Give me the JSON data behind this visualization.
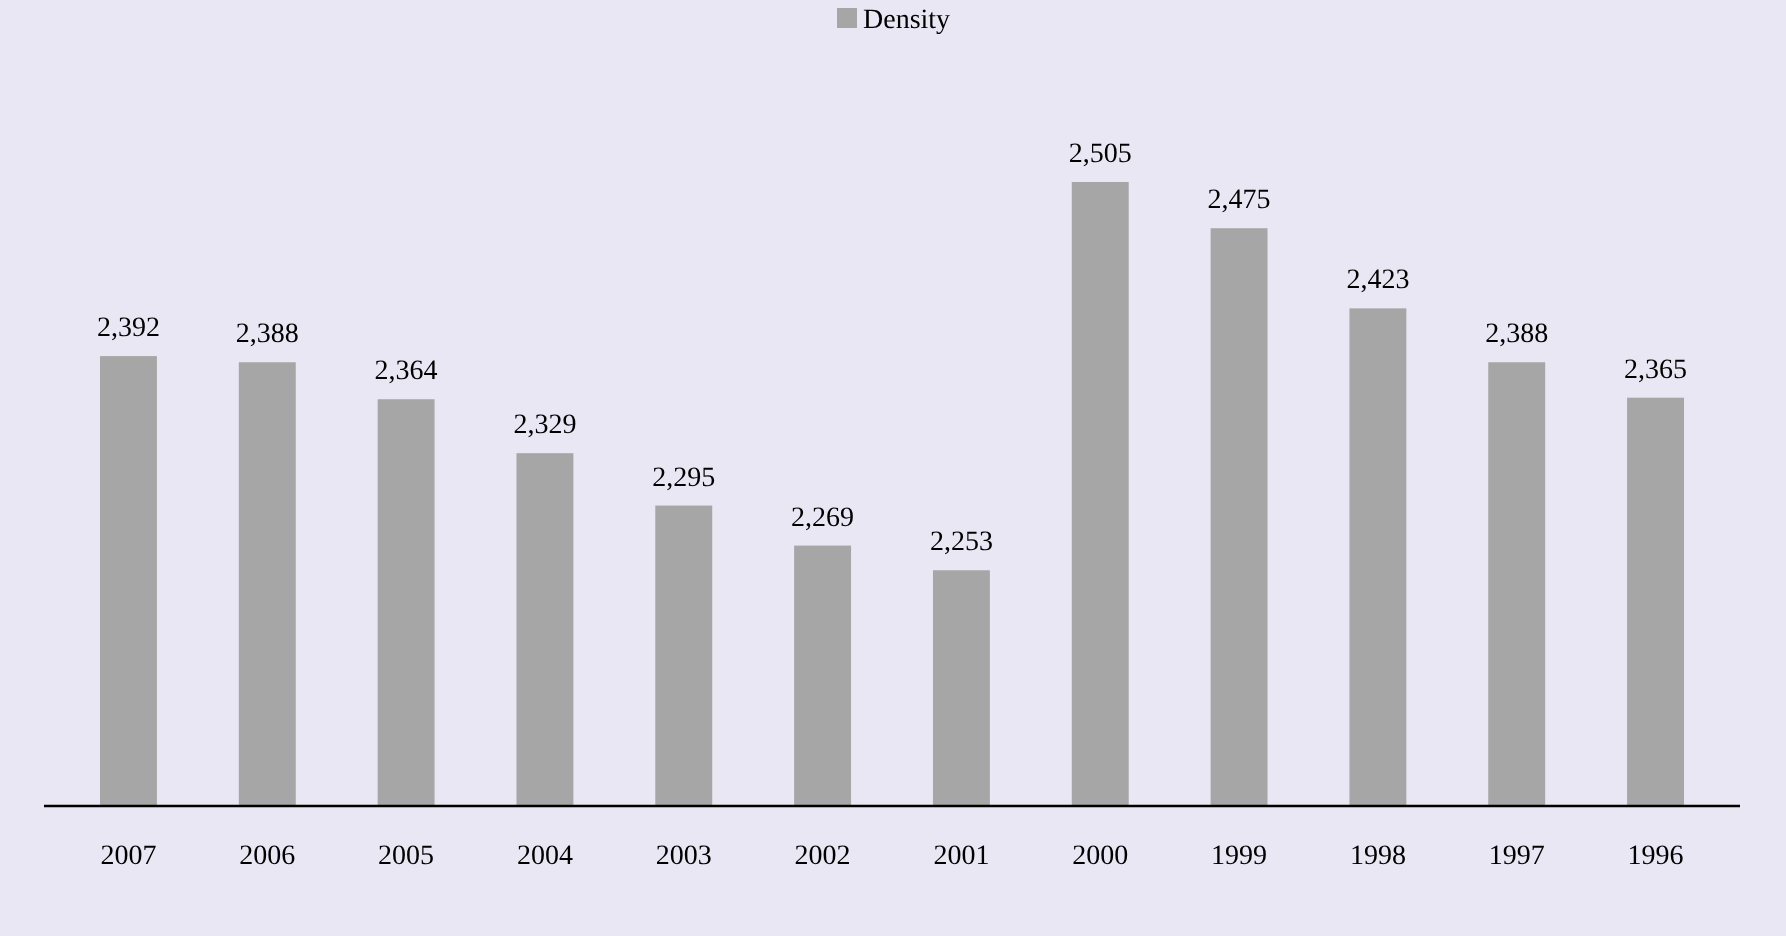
{
  "chart_data": {
    "type": "bar",
    "categories": [
      "2007",
      "2006",
      "2005",
      "2004",
      "2003",
      "2002",
      "2001",
      "2000",
      "1999",
      "1998",
      "1997",
      "1996"
    ],
    "series": [
      {
        "name": "Density",
        "color": "#a6a6a6",
        "values": [
          2392,
          2388,
          2364,
          2329,
          2295,
          2269,
          2253,
          2505,
          2475,
          2423,
          2388,
          2365
        ],
        "value_labels": [
          "2,392",
          "2,388",
          "2,364",
          "2,329",
          "2,295",
          "2,269",
          "2,253",
          "2,505",
          "2,475",
          "2,423",
          "2,388",
          "2,365"
        ]
      }
    ],
    "ylim": [
      2100,
      2505
    ],
    "legend": "top",
    "grid": false
  }
}
